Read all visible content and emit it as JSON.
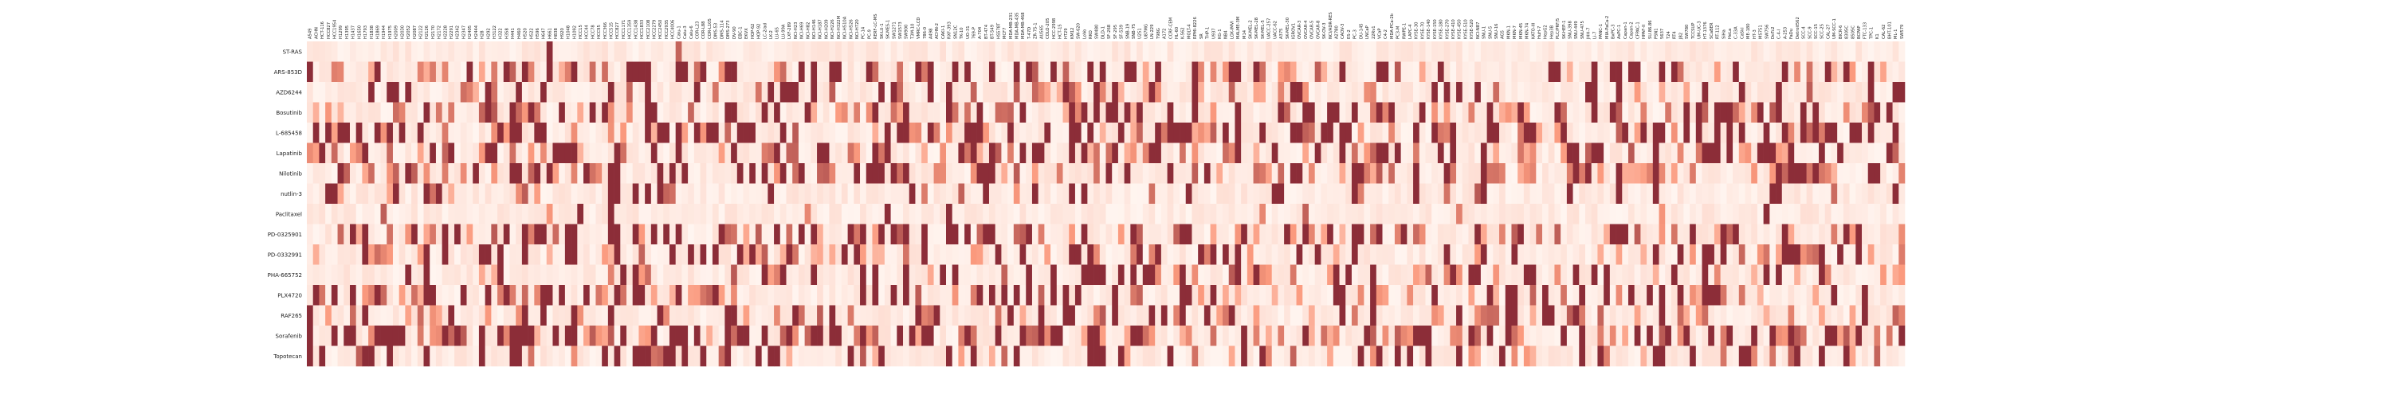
{
  "chart_data": {
    "type": "heatmap",
    "title": "",
    "xlabel": "",
    "ylabel": "",
    "legend": "none",
    "grid": false,
    "value_range": [
      0,
      1
    ],
    "colors": {
      "low": "#fff5f0",
      "mid": "#fb9a7e",
      "high": "#8c2d38"
    },
    "rows": [
      "ST-RAS",
      "ARS-853D",
      "AZD6244",
      "Bosutinib",
      "L-685458",
      "Lapatinib",
      "Nilotinib",
      "nutlin-3",
      "Paclitaxel",
      "PD-0325901",
      "PD-0332991",
      "PHA-665752",
      "PLX4720",
      "RAF265",
      "Sorafenib",
      "Topotecan"
    ],
    "columns": [
      "A549",
      "ACHN",
      "HCT-116",
      "HCC827",
      "HCC1954",
      "H1299",
      "H1395",
      "H1437",
      "H1650",
      "H1793",
      "H1838",
      "H1869",
      "H1944",
      "H1975",
      "H2009",
      "H2030",
      "H2052",
      "H2087",
      "H2122",
      "H2126",
      "H2170",
      "H2172",
      "H2228",
      "H2291",
      "H2342",
      "H2347",
      "H2405",
      "H2444",
      "H28",
      "H292",
      "H3122",
      "H322",
      "H358",
      "H441",
      "H460",
      "H520",
      "H522",
      "H596",
      "H647",
      "H661",
      "H838",
      "H920",
      "H1048",
      "H1092",
      "HCC15",
      "HCC44",
      "HCC78",
      "HCC95",
      "HCC366",
      "HCC515",
      "HCC827",
      "HCC1171",
      "HCC1359",
      "HCC1438",
      "HCC1833",
      "HCC2108",
      "HCC2279",
      "HCC2450",
      "HCC2935",
      "HCC4006",
      "Calu-1",
      "Calu-3",
      "Calu-6",
      "COR-L23",
      "COR-L88",
      "COR-L105",
      "DMS-53",
      "DMS-114",
      "DMS-273",
      "DV-90",
      "EBC-1",
      "EKVX",
      "HOP-62",
      "HOP-92",
      "LC-2/ad",
      "LK-2",
      "LU-65",
      "LU-99A",
      "LXF-289",
      "NCI-H23",
      "NCI-H69",
      "NCI-H82",
      "NCI-H146",
      "NCI-H187",
      "NCI-H209",
      "NCI-H226",
      "NCI-H322M",
      "NCI-H510A",
      "NCI-H526",
      "NCI-H720",
      "PC-14",
      "PC-9",
      "RERF-LC-MS",
      "SK-LU-1",
      "SK-MES-1",
      "SW1271",
      "SW1573",
      "SW900",
      "T3M-10",
      "VMRC-LCD",
      "786-0",
      "A498",
      "ACHN-2",
      "CAKI-1",
      "RXF-393",
      "SN12C",
      "TK-10",
      "UO-31",
      "769-P",
      "A-704",
      "BT-474",
      "BT-549",
      "HS578T",
      "MCF7",
      "MDA-MB-231",
      "MDA-MB-435",
      "MDA-MB-468",
      "T-47D",
      "ZR-75-1",
      "AU565",
      "COLO-205",
      "HCC-2998",
      "HCT-15",
      "HT29",
      "KM12",
      "SW-620",
      "LoVo",
      "RKO",
      "SW480",
      "DLD-1",
      "SF-268",
      "SF-295",
      "SF-539",
      "SNB-19",
      "SNB-75",
      "U251",
      "U87MG",
      "LN-229",
      "T98G",
      "A172",
      "CCRF-CEM",
      "HL-60",
      "K-562",
      "MOLT-4",
      "RPMI-8226",
      "SR",
      "THP-1",
      "U937",
      "KG-1",
      "NB4",
      "LOX-IMVI",
      "MALME-3M",
      "M14",
      "SK-MEL-2",
      "SK-MEL-28",
      "SK-MEL-5",
      "UACC-257",
      "UACC-62",
      "A375",
      "SK-MEL-30",
      "IGROV1",
      "OVCAR-3",
      "OVCAR-4",
      "OVCAR-5",
      "OVCAR-8",
      "SK-OV-3",
      "NCI/ADR-RES",
      "A2780",
      "CAOV-3",
      "ES-2",
      "PC-3",
      "DU-145",
      "LNCaP",
      "22Rv1",
      "VCaP",
      "C4-2",
      "MDA-PCa-2b",
      "PC3-M",
      "RWPE-1",
      "LAPC-4",
      "KYSE-30",
      "KYSE-70",
      "KYSE-140",
      "KYSE-150",
      "KYSE-180",
      "KYSE-270",
      "KYSE-410",
      "KYSE-450",
      "KYSE-510",
      "KYSE-520",
      "NCI-N87",
      "SNU-1",
      "SNU-5",
      "SNU-16",
      "AGS",
      "MKN-1",
      "MKN-7",
      "MKN-45",
      "MKN-74",
      "KATO-III",
      "HuH-7",
      "HepG2",
      "Hep3B",
      "PLC/PRF/5",
      "SK-HEP-1",
      "SNU-398",
      "SNU-449",
      "SNU-475",
      "JHH-7",
      "Li-7",
      "PANC-1",
      "MIA-PaCa-2",
      "BxPC-3",
      "AsPC-1",
      "Capan-1",
      "Capan-2",
      "CFPAC-1",
      "HPAF-II",
      "SU.86.86",
      "PSN1",
      "5637",
      "T24",
      "RT4",
      "J82",
      "SW780",
      "TCCSUP",
      "UM-UC-3",
      "HT-1376",
      "SCaBER",
      "RT-112",
      "SiHa",
      "HeLa",
      "C-33A",
      "CaSki",
      "ME-180",
      "HT-3",
      "MS751",
      "SW756",
      "DoTc2",
      "C-4-I",
      "A-253",
      "FaDu",
      "Detroit562",
      "SCC-4",
      "SCC-9",
      "SCC-15",
      "SCC-25",
      "CAL-27",
      "UM-SCC-1",
      "BICR-6",
      "8305C",
      "8505C",
      "BCPAP",
      "FTC-133",
      "TPC-1",
      "K1",
      "CAL-62",
      "BHT-101",
      "ML-1",
      "SW579"
    ],
    "values": []
  }
}
